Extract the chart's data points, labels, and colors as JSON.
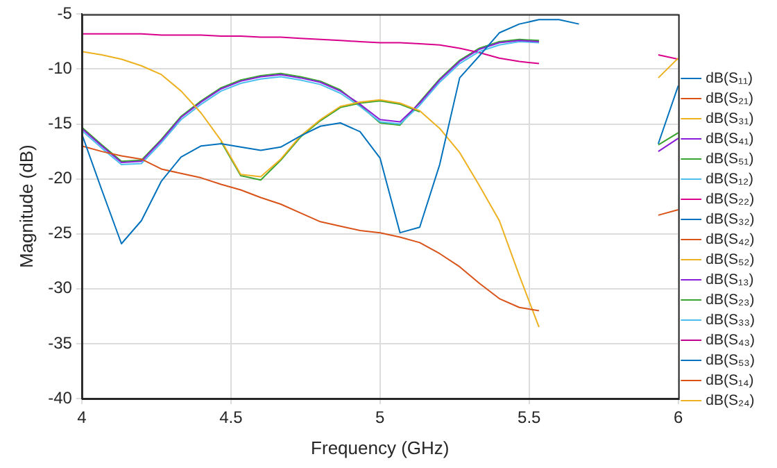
{
  "chart_data": {
    "type": "line",
    "xlabel": "Frequency (GHz)",
    "ylabel": "Magnitude (dB)",
    "x": [
      4,
      4.067,
      4.133,
      4.2,
      4.267,
      4.333,
      4.4,
      4.467,
      4.533,
      4.6,
      4.667,
      4.733,
      4.8,
      4.867,
      4.933,
      5,
      5.067,
      5.133,
      5.2,
      5.267,
      5.333,
      5.4,
      5.467,
      5.533,
      5.6,
      5.667,
      5.733,
      5.8,
      5.867,
      5.933,
      6
    ],
    "xlim": [
      4,
      6
    ],
    "xticks": [
      4,
      4.5,
      5,
      5.5,
      6
    ],
    "ylim": [
      -40,
      -5
    ],
    "yticks": [
      -40,
      -35,
      -30,
      -25,
      -20,
      -15,
      -10,
      -5
    ],
    "grid": true,
    "legend": "right",
    "marker": "none",
    "line_style": "solid",
    "series": [
      {
        "name": "dB(S₁₁)",
        "color": "#0072bd",
        "values": [
          -15.9,
          -21,
          -25.9,
          -23.8,
          -20.2,
          -18,
          -17,
          -16.8,
          -17.1,
          -17.4,
          -17.1,
          -16.1,
          -15.2,
          -14.9,
          -15.7,
          -18.1,
          -24.9,
          -24.4,
          -18.7,
          -10.8,
          -8.8,
          -6.7,
          -5.9,
          -5.5,
          -5.5,
          -5.9,
          null,
          null,
          null,
          -16.8,
          -11.5
        ]
      },
      {
        "name": "dB(S₂₁)",
        "color": "#d95319",
        "values": [
          -17,
          -17.5,
          -17.9,
          -18.2,
          -19.1,
          -19.5,
          -19.9,
          -20.5,
          -21,
          -21.7,
          -22.3,
          -23.1,
          -23.9,
          -24.3,
          -24.7,
          -24.9,
          -25.3,
          -25.8,
          -26.8,
          -28,
          -29.5,
          -30.9,
          -31.7,
          -32,
          null,
          null,
          null,
          null,
          null,
          -23.3,
          -22.8
        ]
      },
      {
        "name": "dB(S₃₁)",
        "color": "#edb120",
        "values": [
          -8.4,
          -8.7,
          -9.1,
          -9.7,
          -10.5,
          -12,
          -14,
          -16.5,
          -19.6,
          -19.8,
          -18.2,
          -16.1,
          -14.6,
          -13.4,
          -13,
          -12.8,
          -13.1,
          -13.8,
          -15.4,
          -17.6,
          -20.6,
          -23.8,
          -28.8,
          -33.5,
          null,
          null,
          null,
          null,
          null,
          -10.8,
          -9
        ]
      },
      {
        "name": "dB(S₄₁)",
        "color": "#8a1ed8",
        "values": [
          -15.4,
          -17,
          -18.5,
          -18.4,
          -16.5,
          -14.4,
          -13,
          -11.8,
          -11.1,
          -10.7,
          -10.5,
          -10.8,
          -11.2,
          -12,
          -13.2,
          -14.6,
          -14.8,
          -13.1,
          -11,
          -9.3,
          -8.2,
          -7.6,
          -7.4,
          -7.5,
          null,
          null,
          null,
          null,
          null,
          -17.5,
          -16.3
        ]
      },
      {
        "name": "dB(S₅₁)",
        "color": "#3aa430",
        "values": [
          null,
          null,
          null,
          null,
          null,
          null,
          null,
          -16.6,
          -19.7,
          -20.1,
          -18.3,
          -16.2,
          -14.7,
          -13.5,
          -13.1,
          -12.9,
          -13.2,
          -13.9,
          null,
          null,
          null,
          null,
          null,
          null,
          null,
          null,
          null,
          null,
          null,
          -16.9,
          -15.8
        ]
      },
      {
        "name": "dB(S₁₂)",
        "color": "#4dbeee",
        "values": [
          -15.6,
          -17.2,
          -18.7,
          -18.6,
          -16.7,
          -14.6,
          -13.2,
          -12,
          -11.3,
          -10.9,
          -10.7,
          -11,
          -11.4,
          -12.2,
          -13.4,
          -14.8,
          -15,
          -13.3,
          -11.2,
          -9.5,
          -8.4,
          -7.8,
          -7.5,
          -7.6,
          null,
          null,
          null,
          null,
          null,
          null,
          null
        ]
      },
      {
        "name": "dB(S₂₂)",
        "color": "#d9008c",
        "values": [
          -6.8,
          -6.8,
          -6.8,
          -6.8,
          -6.9,
          -6.9,
          -6.9,
          -7,
          -7,
          -7.1,
          -7.1,
          -7.2,
          -7.3,
          -7.4,
          -7.5,
          -7.6,
          -7.6,
          -7.7,
          -7.8,
          -8.1,
          -8.5,
          -9,
          -9.3,
          -9.5,
          null,
          null,
          null,
          null,
          null,
          -8.7,
          -9.1
        ]
      },
      {
        "name": "dB(S₃₂)",
        "color": "#0072bd",
        "values": [
          null,
          null,
          null,
          null,
          null,
          null,
          null,
          null,
          null,
          null,
          null,
          null,
          null,
          null,
          null,
          null,
          null,
          null,
          null,
          null,
          null,
          null,
          null,
          null,
          null,
          null,
          null,
          null,
          null,
          null,
          null
        ]
      },
      {
        "name": "dB(S₄₂)",
        "color": "#d95319",
        "values": [
          null,
          null,
          null,
          null,
          null,
          null,
          null,
          null,
          null,
          null,
          null,
          null,
          null,
          null,
          null,
          null,
          null,
          null,
          null,
          null,
          null,
          null,
          null,
          null,
          null,
          null,
          null,
          null,
          null,
          null,
          null
        ]
      },
      {
        "name": "dB(S₅₂)",
        "color": "#edb120",
        "values": [
          null,
          null,
          null,
          null,
          null,
          null,
          null,
          null,
          null,
          null,
          null,
          null,
          null,
          null,
          null,
          null,
          null,
          null,
          null,
          null,
          null,
          null,
          null,
          null,
          null,
          null,
          null,
          null,
          null,
          null,
          null
        ]
      },
      {
        "name": "dB(S₁₃)",
        "color": "#8a1ed8",
        "values": [
          null,
          null,
          null,
          null,
          null,
          null,
          null,
          null,
          null,
          null,
          null,
          null,
          null,
          null,
          null,
          null,
          null,
          null,
          null,
          null,
          null,
          null,
          null,
          null,
          null,
          null,
          null,
          null,
          null,
          null,
          null
        ]
      },
      {
        "name": "dB(S₂₃)",
        "color": "#3aa430",
        "values": [
          -15.3,
          -16.9,
          -18.4,
          -18.3,
          -16.4,
          -14.3,
          -12.9,
          -11.7,
          -11,
          -10.6,
          -10.4,
          -10.7,
          -11.1,
          -11.9,
          -13.3,
          -14.9,
          -15.1,
          -13,
          -10.9,
          -9.2,
          -8.1,
          -7.5,
          -7.3,
          -7.4,
          null,
          null,
          null,
          null,
          null,
          null,
          null
        ]
      },
      {
        "name": "dB(S₃₃)",
        "color": "#4dbeee",
        "values": [
          null,
          null,
          null,
          null,
          null,
          null,
          null,
          null,
          null,
          null,
          null,
          null,
          null,
          null,
          null,
          null,
          null,
          null,
          null,
          null,
          null,
          null,
          null,
          null,
          null,
          null,
          null,
          null,
          null,
          null,
          null
        ]
      },
      {
        "name": "dB(S₄₃)",
        "color": "#c0008c",
        "values": [
          null,
          null,
          null,
          null,
          null,
          null,
          null,
          null,
          null,
          null,
          null,
          null,
          null,
          null,
          null,
          null,
          null,
          null,
          null,
          null,
          null,
          null,
          null,
          null,
          null,
          null,
          null,
          null,
          null,
          null,
          null
        ]
      },
      {
        "name": "dB(S₅₃)",
        "color": "#0072bd",
        "values": [
          null,
          null,
          null,
          null,
          null,
          null,
          null,
          null,
          null,
          null,
          null,
          null,
          null,
          null,
          null,
          null,
          null,
          null,
          null,
          null,
          null,
          null,
          null,
          null,
          null,
          null,
          null,
          null,
          null,
          null,
          null
        ]
      },
      {
        "name": "dB(S₁₄)",
        "color": "#d95319",
        "values": [
          null,
          null,
          null,
          null,
          null,
          null,
          null,
          null,
          null,
          null,
          null,
          null,
          null,
          null,
          null,
          null,
          null,
          null,
          null,
          null,
          null,
          null,
          null,
          null,
          null,
          null,
          null,
          null,
          null,
          null,
          null
        ]
      },
      {
        "name": "dB(S₂₄)",
        "color": "#edb120",
        "values": [
          null,
          null,
          null,
          null,
          null,
          null,
          null,
          null,
          null,
          null,
          null,
          null,
          null,
          null,
          null,
          null,
          null,
          null,
          null,
          null,
          null,
          null,
          null,
          null,
          null,
          null,
          null,
          null,
          null,
          null,
          null
        ]
      }
    ]
  }
}
